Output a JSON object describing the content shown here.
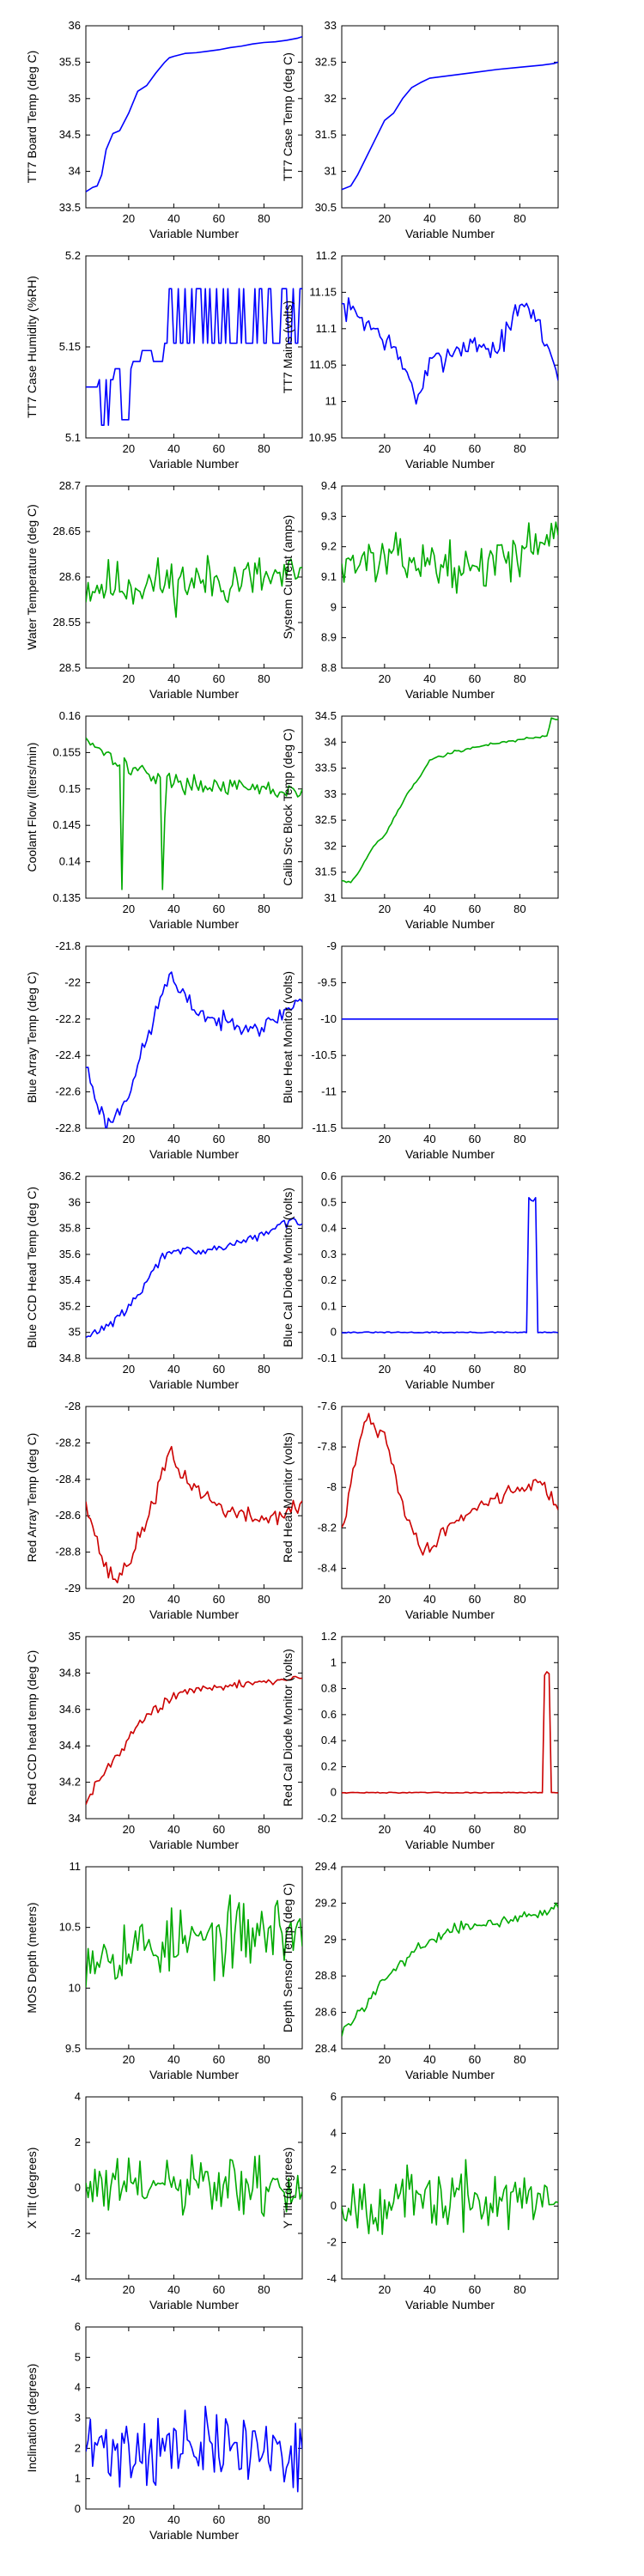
{
  "colors": {
    "blue": "#0000ff",
    "green": "#00aa00",
    "red": "#cc0000"
  },
  "chart_data": [
    {
      "type": "line",
      "ylabel": "TT7 Board Temp (deg C)",
      "xlabel": "Variable Number",
      "xlim": [
        1,
        97
      ],
      "xticks": [
        20,
        40,
        60,
        80
      ],
      "ylim": [
        33.5,
        36
      ],
      "yticks": [
        "33.5",
        "34",
        "34.5",
        "35",
        "35.5",
        "36"
      ],
      "color": "blue",
      "shape": "curve",
      "x": [
        1,
        4,
        6,
        8,
        10,
        13,
        16,
        20,
        24,
        28,
        32,
        36,
        38,
        40,
        45,
        50,
        55,
        60,
        65,
        70,
        75,
        80,
        85,
        90,
        95,
        97
      ],
      "y": [
        33.72,
        33.78,
        33.8,
        33.95,
        34.3,
        34.52,
        34.56,
        34.8,
        35.1,
        35.18,
        35.35,
        35.5,
        35.56,
        35.58,
        35.62,
        35.63,
        35.65,
        35.67,
        35.7,
        35.72,
        35.75,
        35.77,
        35.78,
        35.8,
        35.83,
        35.85
      ]
    },
    {
      "type": "line",
      "ylabel": "TT7 Case Temp (deg C)",
      "xlabel": "Variable Number",
      "xlim": [
        1,
        97
      ],
      "xticks": [
        20,
        40,
        60,
        80
      ],
      "ylim": [
        30.5,
        33
      ],
      "yticks": [
        "30.5",
        "31",
        "31.5",
        "32",
        "32.5",
        "33"
      ],
      "color": "blue",
      "shape": "curve",
      "x": [
        1,
        5,
        8,
        12,
        16,
        20,
        24,
        28,
        32,
        36,
        40,
        50,
        60,
        70,
        80,
        90,
        95,
        97
      ],
      "y": [
        30.75,
        30.8,
        30.95,
        31.2,
        31.45,
        31.7,
        31.8,
        32,
        32.15,
        32.22,
        32.28,
        32.32,
        32.36,
        32.4,
        32.43,
        32.46,
        32.48,
        32.5
      ]
    },
    {
      "type": "line",
      "ylabel": "TT7 Case Humidity (%RH)",
      "xlabel": "Variable Number",
      "xlim": [
        1,
        97
      ],
      "xticks": [
        20,
        40,
        60,
        80
      ],
      "ylim": [
        5.1,
        5.2
      ],
      "yticks": [
        "5.1",
        "5.15",
        "5.2"
      ],
      "color": "blue",
      "shape": "square",
      "start": 1,
      "seed": 3,
      "noise": 0,
      "segments": [
        {
          "from": 1,
          "to": 7,
          "low": 5.128,
          "high": 5.128
        },
        {
          "from": 7,
          "to": 14,
          "low": 5.107,
          "high": 5.132
        },
        {
          "from": 14,
          "to": 22,
          "low": 5.11,
          "high": 5.138
        },
        {
          "from": 22,
          "to": 36,
          "low": 5.142,
          "high": 5.148
        },
        {
          "from": 36,
          "to": 97,
          "low": 5.152,
          "high": 5.182
        }
      ]
    },
    {
      "type": "line",
      "ylabel": "TT7 Mains  (volts)",
      "xlabel": "Variable Number",
      "xlim": [
        1,
        97
      ],
      "xticks": [
        20,
        40,
        60,
        80
      ],
      "ylim": [
        10.95,
        11.2
      ],
      "yticks": [
        "10.95",
        "11",
        "11.05",
        "11.1",
        "11.15",
        "11.2"
      ],
      "color": "blue",
      "shape": "noise",
      "start": 1,
      "seed": 7,
      "noise": 0.012,
      "anchors": {
        "x": [
          1,
          8,
          15,
          22,
          30,
          35,
          40,
          50,
          60,
          70,
          78,
          83,
          88,
          94,
          97
        ],
        "y": [
          11.13,
          11.12,
          11.1,
          11.08,
          11.04,
          11.0,
          11.05,
          11.07,
          11.08,
          11.07,
          11.12,
          11.13,
          11.11,
          11.06,
          11.04
        ]
      }
    },
    {
      "type": "line",
      "ylabel": "Water Temperature (deg C)",
      "xlabel": "Variable Number",
      "xlim": [
        1,
        97
      ],
      "xticks": [
        20,
        40,
        60,
        80
      ],
      "ylim": [
        28.5,
        28.7
      ],
      "yticks": [
        "28.5",
        "28.55",
        "28.6",
        "28.65",
        "28.7"
      ],
      "color": "green",
      "shape": "noise",
      "start": 1,
      "seed": 11,
      "noise": 0.02,
      "anchors": {
        "x": [
          1,
          97
        ],
        "y": [
          28.59,
          28.6
        ]
      }
    },
    {
      "type": "line",
      "ylabel": "System Current (amps)",
      "xlabel": "Variable Number",
      "xlim": [
        1,
        97
      ],
      "xticks": [
        20,
        40,
        60,
        80
      ],
      "ylim": [
        8.8,
        9.4
      ],
      "yticks": [
        "8.8",
        "8.9",
        "9",
        "9.1",
        "9.2",
        "9.3",
        "9.4"
      ],
      "color": "green",
      "shape": "noise",
      "start": 1,
      "seed": 13,
      "noise": 0.05,
      "anchors": {
        "x": [
          1,
          30,
          60,
          90,
          97
        ],
        "y": [
          9.15,
          9.16,
          9.12,
          9.22,
          9.28
        ]
      }
    },
    {
      "type": "line",
      "ylabel": "Coolant Flow (liters/min)",
      "xlabel": "Variable Number",
      "xlim": [
        1,
        97
      ],
      "xticks": [
        20,
        40,
        60,
        80
      ],
      "ylim": [
        0.135,
        0.16
      ],
      "yticks": [
        "0.135",
        "0.14",
        "0.145",
        "0.15",
        "0.155",
        "0.16"
      ],
      "color": "green",
      "shape": "noise",
      "start": 1,
      "seed": 17,
      "noise": 0.0008,
      "anchors": {
        "x": [
          1,
          10,
          20,
          30,
          40,
          50,
          60,
          70,
          80,
          90,
          97
        ],
        "y": [
          0.157,
          0.155,
          0.153,
          0.152,
          0.151,
          0.1505,
          0.1505,
          0.15,
          0.15,
          0.1495,
          0.1495
        ]
      },
      "spikes": [
        {
          "x": 17,
          "y": 0.1362
        },
        {
          "x": 35,
          "y": 0.1362
        },
        {
          "x": 36,
          "y": 0.146
        }
      ]
    },
    {
      "type": "line",
      "ylabel": "Calib Src Block Temp (deg C)",
      "xlabel": "Variable Number",
      "xlim": [
        1,
        97
      ],
      "xticks": [
        20,
        40,
        60,
        80
      ],
      "ylim": [
        31,
        34.5
      ],
      "yticks": [
        "31",
        "31.5",
        "32",
        "32.5",
        "33",
        "33.5",
        "34",
        "34.5"
      ],
      "color": "green",
      "shape": "noise",
      "start": 1,
      "seed": 19,
      "noise": 0.02,
      "anchors": {
        "x": [
          1,
          5,
          10,
          15,
          20,
          25,
          30,
          35,
          40,
          50,
          60,
          70,
          80,
          92,
          94,
          97
        ],
        "y": [
          31.35,
          31.3,
          31.6,
          32.0,
          32.2,
          32.6,
          33.0,
          33.3,
          33.65,
          33.8,
          33.9,
          33.98,
          34.05,
          34.12,
          34.45,
          34.45
        ]
      }
    },
    {
      "type": "line",
      "ylabel": "Blue Array Temp (deg C)",
      "xlabel": "Variable Number",
      "xlim": [
        1,
        97
      ],
      "xticks": [
        20,
        40,
        60,
        80
      ],
      "ylim": [
        -22.8,
        -21.8
      ],
      "yticks": [
        "-22.8",
        "-22.6",
        "-22.4",
        "-22.2",
        "-22",
        "-21.8"
      ],
      "color": "blue",
      "shape": "noise",
      "start": 1,
      "seed": 23,
      "noise": 0.035,
      "anchors": {
        "x": [
          1,
          5,
          10,
          15,
          20,
          25,
          30,
          35,
          38,
          42,
          50,
          60,
          70,
          80,
          90,
          97
        ],
        "y": [
          -22.45,
          -22.62,
          -22.78,
          -22.72,
          -22.6,
          -22.42,
          -22.25,
          -22.05,
          -21.95,
          -22.05,
          -22.15,
          -22.22,
          -22.22,
          -22.25,
          -22.15,
          -22.08
        ]
      }
    },
    {
      "type": "line",
      "ylabel": "Blue Heat Monitor (volts)",
      "xlabel": "Variable Number",
      "xlim": [
        1,
        97
      ],
      "xticks": [
        20,
        40,
        60,
        80
      ],
      "ylim": [
        -11.5,
        -9
      ],
      "yticks": [
        "-11.5",
        "-11",
        "-10.5",
        "-10",
        "-9.5",
        "-9"
      ],
      "color": "blue",
      "shape": "flat",
      "value": -10
    },
    {
      "type": "line",
      "ylabel": "Blue CCD Head Temp (deg C)",
      "xlabel": "Variable Number",
      "xlim": [
        1,
        97
      ],
      "xticks": [
        20,
        40,
        60,
        80
      ],
      "ylim": [
        34.8,
        36.2
      ],
      "yticks": [
        "34.8",
        "35",
        "35.2",
        "35.4",
        "35.6",
        "35.8",
        "36",
        "36.2"
      ],
      "color": "blue",
      "shape": "noise",
      "start": 1,
      "seed": 29,
      "noise": 0.025,
      "anchors": {
        "x": [
          1,
          5,
          10,
          15,
          20,
          25,
          30,
          35,
          40,
          50,
          60,
          70,
          80,
          90,
          97
        ],
        "y": [
          34.95,
          35.0,
          35.05,
          35.1,
          35.2,
          35.3,
          35.45,
          35.58,
          35.65,
          35.6,
          35.65,
          35.7,
          35.75,
          35.85,
          35.85
        ]
      }
    },
    {
      "type": "line",
      "ylabel": "Blue Cal Diode Monitor (volts)",
      "xlabel": "Variable Number",
      "xlim": [
        1,
        97
      ],
      "xticks": [
        20,
        40,
        60,
        80
      ],
      "ylim": [
        -0.1,
        0.6
      ],
      "yticks": [
        "-0.1",
        "0",
        "0.1",
        "0.2",
        "0.3",
        "0.4",
        "0.5",
        "0.6"
      ],
      "color": "blue",
      "shape": "pulse",
      "start": 1,
      "seed": 31,
      "noise": 0.002,
      "base": 0,
      "pulse": {
        "rise": 84,
        "fall": 87,
        "top": 0.52
      }
    },
    {
      "type": "line",
      "ylabel": "Red Array Temp (deg C)",
      "xlabel": "Variable Number",
      "xlim": [
        1,
        97
      ],
      "xticks": [
        20,
        40,
        60,
        80
      ],
      "ylim": [
        -29,
        -28
      ],
      "yticks": [
        "-29",
        "-28.8",
        "-28.6",
        "-28.4",
        "-28.2",
        "-28"
      ],
      "color": "red",
      "shape": "noise",
      "start": 1,
      "seed": 37,
      "noise": 0.035,
      "anchors": {
        "x": [
          1,
          5,
          10,
          15,
          20,
          25,
          30,
          35,
          38,
          42,
          50,
          60,
          70,
          80,
          90,
          97
        ],
        "y": [
          -28.5,
          -28.7,
          -28.9,
          -28.95,
          -28.85,
          -28.72,
          -28.55,
          -28.38,
          -28.25,
          -28.35,
          -28.45,
          -28.55,
          -28.6,
          -28.62,
          -28.58,
          -28.55
        ]
      }
    },
    {
      "type": "line",
      "ylabel": "Red Heat Monitor (volts)",
      "xlabel": "Variable Number",
      "xlim": [
        1,
        97
      ],
      "xticks": [
        20,
        40,
        60,
        80
      ],
      "ylim": [
        -8.5,
        -7.6
      ],
      "yticks": [
        "-8.4",
        "-8.2",
        "-8",
        "-7.8",
        "-7.6"
      ],
      "color": "red",
      "shape": "noise",
      "start": 1,
      "seed": 41,
      "noise": 0.025,
      "anchors": {
        "x": [
          1,
          5,
          10,
          12,
          15,
          20,
          25,
          30,
          35,
          40,
          45,
          50,
          60,
          70,
          80,
          90,
          97
        ],
        "y": [
          -8.22,
          -8.0,
          -7.72,
          -7.65,
          -7.7,
          -7.75,
          -7.95,
          -8.15,
          -8.28,
          -8.32,
          -8.22,
          -8.18,
          -8.1,
          -8.05,
          -8.0,
          -7.98,
          -8.1
        ]
      }
    },
    {
      "type": "line",
      "ylabel": "Red CCD head temp (deg C)",
      "xlabel": "Variable Number",
      "xlim": [
        1,
        97
      ],
      "xticks": [
        20,
        40,
        60,
        80
      ],
      "ylim": [
        34,
        35
      ],
      "yticks": [
        "34",
        "34.2",
        "34.4",
        "34.6",
        "34.8",
        "35"
      ],
      "color": "red",
      "shape": "noise",
      "start": 1,
      "seed": 43,
      "noise": 0.02,
      "anchors": {
        "x": [
          1,
          5,
          10,
          15,
          20,
          25,
          30,
          35,
          40,
          50,
          60,
          70,
          80,
          90,
          97
        ],
        "y": [
          34.1,
          34.18,
          34.27,
          34.35,
          34.45,
          34.52,
          34.58,
          34.63,
          34.68,
          34.7,
          34.72,
          34.74,
          34.75,
          34.77,
          34.78
        ]
      }
    },
    {
      "type": "line",
      "ylabel": "Red Cal Diode Monitor (volts)",
      "xlabel": "Variable Number",
      "xlim": [
        1,
        97
      ],
      "xticks": [
        20,
        40,
        60,
        80
      ],
      "ylim": [
        -0.2,
        1.2
      ],
      "yticks": [
        "-0.2",
        "0",
        "0.2",
        "0.4",
        "0.6",
        "0.8",
        "1",
        "1.2"
      ],
      "color": "red",
      "shape": "pulse",
      "start": 1,
      "seed": 47,
      "noise": 0.003,
      "base": 0,
      "pulse": {
        "rise": 91,
        "fall": 93,
        "top": 0.93
      }
    },
    {
      "type": "line",
      "ylabel": "MOS Depth  (meters)",
      "xlabel": "Variable Number",
      "xlim": [
        1,
        97
      ],
      "xticks": [
        20,
        40,
        60,
        80
      ],
      "ylim": [
        9.5,
        11
      ],
      "yticks": [
        "9.5",
        "10",
        "10.5",
        "11"
      ],
      "color": "green",
      "shape": "noise",
      "start": 1,
      "seed": 53,
      "noise": 0.2,
      "anchors": {
        "x": [
          1,
          30,
          60,
          90,
          97
        ],
        "y": [
          10.3,
          10.35,
          10.4,
          10.5,
          10.4
        ]
      }
    },
    {
      "type": "line",
      "ylabel": "Depth Sensor Temp (deg C)",
      "xlabel": "Variable Number",
      "xlim": [
        1,
        97
      ],
      "xticks": [
        20,
        40,
        60,
        80
      ],
      "ylim": [
        28.4,
        29.4
      ],
      "yticks": [
        "28.4",
        "28.6",
        "28.8",
        "29",
        "29.2",
        "29.4"
      ],
      "color": "green",
      "shape": "noise",
      "start": 1,
      "seed": 59,
      "noise": 0.02,
      "anchors": {
        "x": [
          1,
          5,
          10,
          15,
          20,
          25,
          30,
          35,
          40,
          50,
          60,
          70,
          80,
          90,
          97
        ],
        "y": [
          28.48,
          28.55,
          28.62,
          28.7,
          28.78,
          28.85,
          28.9,
          28.95,
          29.0,
          29.05,
          29.08,
          29.1,
          29.12,
          29.15,
          29.18
        ]
      }
    },
    {
      "type": "line",
      "ylabel": "X Tilt  (degrees)",
      "xlabel": "Variable Number",
      "xlim": [
        1,
        97
      ],
      "xticks": [
        20,
        40,
        60,
        80
      ],
      "ylim": [
        -4,
        4
      ],
      "yticks": [
        "-4",
        "-2",
        "0",
        "2",
        "4"
      ],
      "color": "green",
      "shape": "noise",
      "start": 1,
      "seed": 61,
      "noise": 1.0,
      "anchors": {
        "x": [
          1,
          97
        ],
        "y": [
          0,
          0
        ]
      }
    },
    {
      "type": "line",
      "ylabel": "Y Tilt  (degrees)",
      "xlabel": "Variable Number",
      "xlim": [
        1,
        97
      ],
      "xticks": [
        20,
        40,
        60,
        80
      ],
      "ylim": [
        -4,
        6
      ],
      "yticks": [
        "-4",
        "-2",
        "0",
        "2",
        "4",
        "6"
      ],
      "color": "green",
      "shape": "noise",
      "start": 1,
      "seed": 67,
      "noise": 1.2,
      "anchors": {
        "x": [
          1,
          97
        ],
        "y": [
          0.3,
          0.3
        ]
      }
    },
    {
      "type": "line",
      "ylabel": "Inclination  (degrees)",
      "xlabel": "Variable Number",
      "xlim": [
        1,
        97
      ],
      "xticks": [
        20,
        40,
        60,
        80
      ],
      "ylim": [
        0,
        6
      ],
      "yticks": [
        "0",
        "1",
        "2",
        "3",
        "4",
        "5",
        "6"
      ],
      "color": "blue",
      "shape": "noise",
      "start": 1,
      "seed": 71,
      "noise": 0.9,
      "floor": 0.3,
      "anchors": {
        "x": [
          1,
          97
        ],
        "y": [
          2.0,
          2.0
        ]
      }
    }
  ]
}
